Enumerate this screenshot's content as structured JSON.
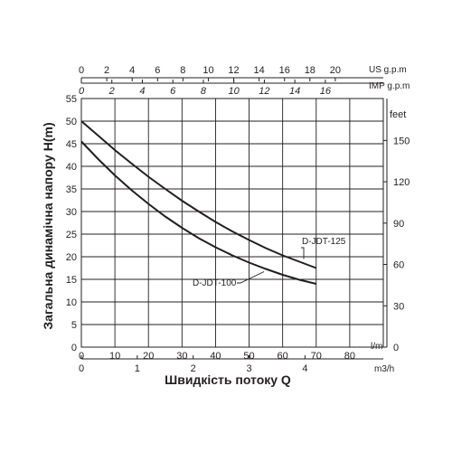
{
  "chart_data": {
    "type": "line",
    "ylabel": "Загальна динамічна напору H(m)",
    "xlabel": "Швидкість потоку Q",
    "axes": {
      "lpm": {
        "unit": "l/m",
        "min": 0,
        "max": 90,
        "ticks": [
          0,
          10,
          20,
          30,
          40,
          50,
          60,
          70,
          80
        ]
      },
      "m3h": {
        "unit": "m3/h",
        "min": 0,
        "max": 5.4,
        "ticks": [
          0,
          1,
          2,
          3,
          4
        ]
      },
      "usgpm": {
        "unit": "US g.p.m",
        "min": 0,
        "max": 23.78,
        "ticks": [
          0,
          2,
          4,
          6,
          8,
          10,
          12,
          14,
          16,
          18,
          20
        ]
      },
      "impgpm": {
        "unit": "IMP g.p.m",
        "min": 0,
        "max": 19.8,
        "ticks": [
          0,
          2,
          4,
          6,
          8,
          10,
          12,
          14,
          16
        ]
      },
      "head_m": {
        "unit": "",
        "min": 0,
        "max": 55,
        "ticks": [
          0,
          5,
          10,
          15,
          20,
          25,
          30,
          35,
          40,
          45,
          50,
          55
        ]
      },
      "head_ft": {
        "unit": "feet",
        "min": 0,
        "max": 180.4,
        "ticks": [
          0,
          30,
          60,
          90,
          120,
          150
        ]
      }
    },
    "series": [
      {
        "name": "D-JDT-125",
        "x": [
          0,
          5,
          10,
          15,
          20,
          25,
          30,
          35,
          40,
          45,
          50,
          55,
          60,
          65,
          70
        ],
        "y": [
          50,
          46.8,
          43.6,
          40.6,
          37.7,
          35,
          32.4,
          30,
          27.7,
          25.6,
          23.7,
          21.9,
          20.3,
          18.9,
          17.5
        ]
      },
      {
        "name": "D-JDT-100",
        "x": [
          0,
          5,
          10,
          15,
          20,
          25,
          30,
          35,
          40,
          45,
          50,
          55,
          60,
          65,
          70
        ],
        "y": [
          45.5,
          41.6,
          38,
          34.7,
          31.7,
          28.9,
          26.4,
          24.1,
          22.1,
          20.3,
          18.7,
          17.3,
          16,
          14.9,
          14
        ]
      }
    ],
    "grid": true
  }
}
